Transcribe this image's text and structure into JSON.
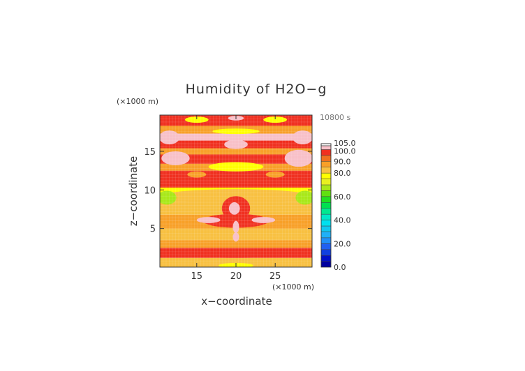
{
  "chart_data": {
    "type": "heatmap",
    "title": "Humidity of H2O−g",
    "xlabel": "x−coordinate",
    "ylabel": "z−coordinate",
    "x_unit": "(×1000 m)",
    "y_unit": "(×1000 m)",
    "time_label": "10800 s",
    "xlim": [
      10.3,
      29.7
    ],
    "ylim": [
      0,
      19.7
    ],
    "x_ticks": [
      15,
      20,
      25
    ],
    "y_ticks": [
      5,
      10,
      15
    ],
    "x_tick_labels": [
      "15",
      "20",
      "25"
    ],
    "y_tick_labels": [
      "5",
      "10",
      "15"
    ],
    "colorbar": {
      "range": [
        0,
        105
      ],
      "labels": [
        "105.0",
        "100.0",
        "90.0",
        "80.0",
        "60.0",
        "40.0",
        "20.0",
        "0.0"
      ],
      "label_values": [
        105,
        100,
        90,
        80,
        60,
        40,
        20,
        0
      ],
      "levels": [
        {
          "min": 0,
          "max": 5,
          "color": "#0000a0"
        },
        {
          "min": 5,
          "max": 10,
          "color": "#0010c8"
        },
        {
          "min": 10,
          "max": 15,
          "color": "#1040e0"
        },
        {
          "min": 15,
          "max": 20,
          "color": "#2060f0"
        },
        {
          "min": 20,
          "max": 25,
          "color": "#2090f8"
        },
        {
          "min": 25,
          "max": 30,
          "color": "#20b0f8"
        },
        {
          "min": 30,
          "max": 35,
          "color": "#10c8f0"
        },
        {
          "min": 35,
          "max": 40,
          "color": "#00e0f0"
        },
        {
          "min": 40,
          "max": 45,
          "color": "#00e8c8"
        },
        {
          "min": 45,
          "max": 50,
          "color": "#00e890"
        },
        {
          "min": 50,
          "max": 55,
          "color": "#00e050"
        },
        {
          "min": 55,
          "max": 60,
          "color": "#20e020"
        },
        {
          "min": 60,
          "max": 65,
          "color": "#60e010"
        },
        {
          "min": 65,
          "max": 70,
          "color": "#a8e818"
        },
        {
          "min": 70,
          "max": 75,
          "color": "#e8f020"
        },
        {
          "min": 75,
          "max": 80,
          "color": "#ffff00"
        },
        {
          "min": 80,
          "max": 85,
          "color": "#f8c040"
        },
        {
          "min": 85,
          "max": 90,
          "color": "#f8a028"
        },
        {
          "min": 90,
          "max": 95,
          "color": "#f07020"
        },
        {
          "min": 95,
          "max": 100,
          "color": "#f03020"
        },
        {
          "min": 100,
          "max": 105,
          "color": "#f8c0c8"
        }
      ]
    },
    "field_bands": [
      {
        "z": [
          0,
          1.2
        ],
        "value": 84
      },
      {
        "z": [
          1.2,
          2.5
        ],
        "value": 96
      },
      {
        "z": [
          2.5,
          3.5
        ],
        "value": 86
      },
      {
        "z": [
          3.5,
          5.0
        ],
        "value": 82
      },
      {
        "z": [
          5.0,
          6.8
        ],
        "value": 88
      },
      {
        "z": [
          6.8,
          8.5
        ],
        "value": 84
      },
      {
        "z": [
          8.5,
          9.6
        ],
        "value": 80
      },
      {
        "z": [
          9.6,
          10.3
        ],
        "value": 76
      },
      {
        "z": [
          10.3,
          11.2
        ],
        "value": 96
      },
      {
        "z": [
          11.2,
          12.5
        ],
        "value": 97
      },
      {
        "z": [
          12.5,
          13.4
        ],
        "value": 86
      },
      {
        "z": [
          13.4,
          14.6
        ],
        "value": 97
      },
      {
        "z": [
          14.6,
          15.4
        ],
        "value": 88
      },
      {
        "z": [
          15.4,
          16.4
        ],
        "value": 97
      },
      {
        "z": [
          16.4,
          17.3
        ],
        "value": 102
      },
      {
        "z": [
          17.3,
          18.3
        ],
        "value": 86
      },
      {
        "z": [
          18.3,
          19.7
        ],
        "value": 96
      }
    ],
    "field_features": [
      {
        "x": 20,
        "z": 9.2,
        "rx": 9.6,
        "rz": 0.9,
        "value": 82
      },
      {
        "x": 11.2,
        "z": 9.0,
        "rx": 1.2,
        "rz": 0.9,
        "value": 66
      },
      {
        "x": 28.8,
        "z": 9.0,
        "rx": 1.2,
        "rz": 0.9,
        "value": 66
      },
      {
        "x": 20,
        "z": 6.0,
        "rx": 4.2,
        "rz": 0.9,
        "value": 97
      },
      {
        "x": 20,
        "z": 7.6,
        "rx": 1.8,
        "rz": 1.6,
        "value": 97
      },
      {
        "x": 19.8,
        "z": 7.6,
        "rx": 0.7,
        "rz": 0.8,
        "value": 102
      },
      {
        "x": 20,
        "z": 3.9,
        "rx": 0.4,
        "rz": 0.6,
        "value": 102
      },
      {
        "x": 20,
        "z": 5.2,
        "rx": 0.4,
        "rz": 0.8,
        "value": 102
      },
      {
        "x": 16.5,
        "z": 6.1,
        "rx": 1.5,
        "rz": 0.4,
        "value": 102
      },
      {
        "x": 23.5,
        "z": 6.1,
        "rx": 1.5,
        "rz": 0.4,
        "value": 102
      },
      {
        "x": 20,
        "z": 1.8,
        "rx": 7.5,
        "rz": 0.6,
        "value": 97
      },
      {
        "x": 20,
        "z": 0.2,
        "rx": 2.2,
        "rz": 0.35,
        "value": 78
      },
      {
        "x": 12.3,
        "z": 14.1,
        "rx": 1.8,
        "rz": 0.9,
        "value": 102
      },
      {
        "x": 28.0,
        "z": 14.1,
        "rx": 1.8,
        "rz": 1.1,
        "value": 102
      },
      {
        "x": 20,
        "z": 13.0,
        "rx": 3.5,
        "rz": 0.6,
        "value": 78
      },
      {
        "x": 15.0,
        "z": 12.0,
        "rx": 1.2,
        "rz": 0.4,
        "value": 86
      },
      {
        "x": 25.0,
        "z": 12.0,
        "rx": 1.2,
        "rz": 0.4,
        "value": 86
      },
      {
        "x": 20,
        "z": 15.9,
        "rx": 1.5,
        "rz": 0.6,
        "value": 102
      },
      {
        "x": 20,
        "z": 17.6,
        "rx": 3.0,
        "rz": 0.35,
        "value": 78
      },
      {
        "x": 15.0,
        "z": 19.1,
        "rx": 1.5,
        "rz": 0.4,
        "value": 78
      },
      {
        "x": 25.0,
        "z": 19.1,
        "rx": 1.5,
        "rz": 0.4,
        "value": 78
      },
      {
        "x": 20,
        "z": 19.3,
        "rx": 1.0,
        "rz": 0.3,
        "value": 102
      },
      {
        "x": 11.5,
        "z": 16.8,
        "rx": 1.3,
        "rz": 0.9,
        "value": 102
      },
      {
        "x": 28.5,
        "z": 16.8,
        "rx": 1.3,
        "rz": 0.9,
        "value": 102
      }
    ]
  }
}
